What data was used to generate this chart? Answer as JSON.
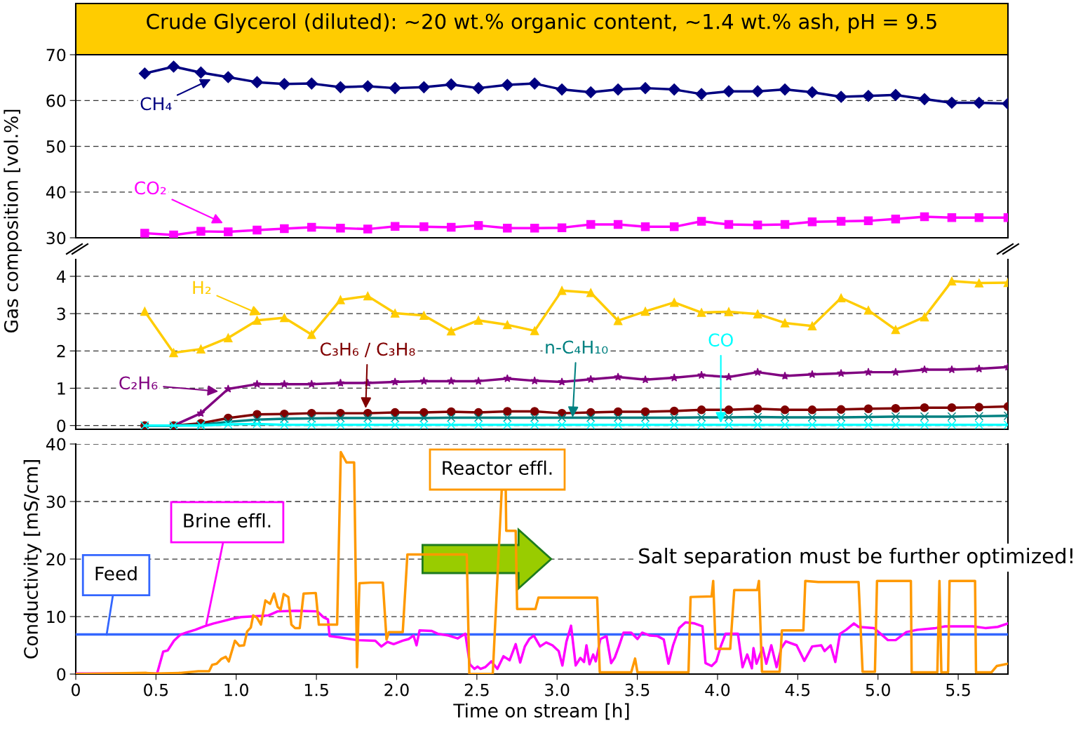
{
  "chart_data": [
    {
      "type": "line",
      "title": "Crude Glycerol (diluted): ~20 wt.% organic content, ~1.4 wt.% ash, pH = 9.5",
      "ylabel": "Gas composition [vol.%]",
      "x": [
        0.43,
        0.61,
        0.78,
        0.95,
        1.13,
        1.3,
        1.47,
        1.65,
        1.82,
        1.99,
        2.17,
        2.34,
        2.51,
        2.69,
        2.86,
        3.03,
        3.21,
        3.38,
        3.55,
        3.73,
        3.9,
        4.07,
        4.25,
        4.42,
        4.59,
        4.77,
        4.94,
        5.11,
        5.29,
        5.46,
        5.63,
        5.81
      ],
      "xlim": [
        0,
        5.81
      ],
      "ylim": [
        30,
        70
      ],
      "yticks": [
        30,
        40,
        50,
        60,
        70
      ],
      "grid": "y",
      "tick_labels": "y",
      "series": [
        {
          "name": "CH₄",
          "color": "#000080",
          "marker": "diamond",
          "values": [
            65.9,
            67.4,
            66.1,
            65.1,
            64.0,
            63.6,
            63.7,
            62.9,
            63.1,
            62.7,
            62.9,
            63.5,
            62.7,
            63.4,
            63.7,
            62.4,
            61.8,
            62.4,
            62.7,
            62.4,
            61.4,
            62.0,
            62.0,
            62.4,
            61.8,
            60.8,
            61.0,
            61.2,
            60.3,
            59.5,
            59.5,
            59.3
          ]
        },
        {
          "name": "CO₂",
          "color": "#ff00ff",
          "marker": "square",
          "values": [
            31.0,
            30.6,
            31.4,
            31.3,
            31.7,
            32.0,
            32.3,
            32.1,
            31.9,
            32.5,
            32.4,
            32.3,
            32.7,
            32.1,
            32.1,
            32.2,
            32.9,
            32.9,
            32.4,
            32.4,
            33.6,
            32.9,
            32.8,
            32.9,
            33.5,
            33.6,
            33.7,
            34.1,
            34.6,
            34.4,
            34.4,
            34.4
          ]
        }
      ]
    },
    {
      "type": "line",
      "x": [
        0.43,
        0.61,
        0.78,
        0.95,
        1.13,
        1.3,
        1.47,
        1.65,
        1.82,
        1.99,
        2.17,
        2.34,
        2.51,
        2.69,
        2.86,
        3.03,
        3.21,
        3.38,
        3.55,
        3.73,
        3.9,
        4.07,
        4.25,
        4.42,
        4.59,
        4.77,
        4.94,
        5.11,
        5.29,
        5.46,
        5.63,
        5.81
      ],
      "xlim": [
        0,
        5.81
      ],
      "ylim": [
        -0.1,
        4.45
      ],
      "yticks": [
        0,
        1,
        2,
        3,
        4
      ],
      "grid": "y",
      "tick_labels": "y",
      "series": [
        {
          "name": "H₂",
          "color": "#ffcc00",
          "marker": "triangle",
          "values": [
            3.06,
            1.95,
            2.05,
            2.35,
            2.82,
            2.89,
            2.44,
            3.37,
            3.47,
            3.01,
            2.95,
            2.53,
            2.82,
            2.7,
            2.54,
            3.62,
            3.56,
            2.81,
            3.06,
            3.3,
            3.03,
            3.05,
            2.99,
            2.75,
            2.67,
            3.42,
            3.09,
            2.57,
            2.91,
            3.87,
            3.82,
            3.83
          ]
        },
        {
          "name": "C₂H₆",
          "color": "#800080",
          "marker": "star",
          "values": [
            0,
            0,
            0.33,
            0.98,
            1.11,
            1.11,
            1.11,
            1.14,
            1.14,
            1.17,
            1.19,
            1.19,
            1.19,
            1.26,
            1.2,
            1.17,
            1.24,
            1.3,
            1.23,
            1.28,
            1.35,
            1.3,
            1.43,
            1.33,
            1.37,
            1.4,
            1.43,
            1.43,
            1.5,
            1.5,
            1.52,
            1.57
          ]
        },
        {
          "name": "C₃H₆ / C₃H₈",
          "color": "#800000",
          "marker": "circle",
          "values": [
            0,
            0,
            0.06,
            0.2,
            0.3,
            0.31,
            0.33,
            0.33,
            0.33,
            0.35,
            0.35,
            0.37,
            0.35,
            0.38,
            0.38,
            0.33,
            0.35,
            0.37,
            0.37,
            0.39,
            0.42,
            0.42,
            0.45,
            0.42,
            0.42,
            0.43,
            0.45,
            0.46,
            0.48,
            0.48,
            0.49,
            0.51
          ]
        },
        {
          "name": "n-C₄H₁₀",
          "color": "#008080",
          "marker": "cross",
          "values": [
            0,
            0,
            0.02,
            0.1,
            0.16,
            0.18,
            0.19,
            0.2,
            0.2,
            0.2,
            0.2,
            0.21,
            0.21,
            0.21,
            0.21,
            0.21,
            0.21,
            0.21,
            0.21,
            0.21,
            0.22,
            0.22,
            0.23,
            0.22,
            0.22,
            0.22,
            0.23,
            0.24,
            0.24,
            0.24,
            0.25,
            0.26
          ]
        },
        {
          "name": "CO",
          "color": "#00ffff",
          "marker": "cross",
          "values": [
            0,
            0,
            0,
            0.03,
            0.04,
            0.02,
            0.02,
            0.02,
            0.02,
            0.02,
            0.02,
            0.02,
            0.02,
            0.02,
            0.02,
            0.02,
            0.02,
            0.02,
            0.02,
            0.02,
            0.02,
            0.02,
            0.02,
            0.02,
            0.02,
            0.02,
            0.02,
            0.02,
            0.02,
            0.02,
            0.02,
            0.02
          ]
        }
      ]
    },
    {
      "type": "line",
      "xlabel": "Time on stream [h]",
      "ylabel": "Conductivity [mS/cm]",
      "xlim": [
        0,
        5.81
      ],
      "xticks": [
        0,
        0.5,
        {
          "value": 1,
          "label": "1.0"
        },
        1.5,
        {
          "value": 2,
          "label": "2.0"
        },
        2.5,
        {
          "value": 3,
          "label": "3.0"
        },
        3.5,
        {
          "value": 4,
          "label": "4.0"
        },
        4.5,
        {
          "value": 5,
          "label": "5.0"
        },
        5.5
      ],
      "ylim": [
        0,
        40
      ],
      "yticks": [
        0,
        10,
        20,
        30,
        40
      ],
      "grid": "y",
      "marker": "none",
      "annotations": [
        "Salt separation must be further optimized!"
      ],
      "series": [
        {
          "name": "Feed",
          "color": "#3366ff",
          "x": [
            0,
            5.81
          ],
          "values": [
            6.9,
            6.9
          ]
        },
        {
          "name": "Brine effl.",
          "color": "#ff00ff",
          "x": [
            0,
            0.507,
            0.545,
            0.573,
            0.612,
            0.65,
            0.688,
            0.745,
            0.802,
            0.859,
            0.916,
            0.973,
            1.03,
            1.144,
            1.201,
            1.258,
            1.372,
            1.505,
            1.543,
            1.572,
            1.582,
            1.639,
            1.753,
            1.867,
            1.905,
            1.943,
            1.981,
            2.038,
            2.076,
            2.105,
            2.124,
            2.143,
            2.219,
            2.257,
            2.323,
            2.38,
            2.428,
            2.456,
            2.485,
            2.504,
            2.523,
            2.552,
            2.59,
            2.628,
            2.666,
            2.704,
            2.742,
            2.77,
            2.799,
            2.827,
            2.855,
            2.894,
            2.932,
            2.971,
            3.01,
            3.033,
            3.058,
            3.087,
            3.116,
            3.145,
            3.168,
            3.183,
            3.202,
            3.225,
            3.241,
            3.27,
            3.308,
            3.337,
            3.36,
            3.385,
            3.414,
            3.462,
            3.501,
            3.53,
            3.578,
            3.626,
            3.665,
            3.694,
            3.723,
            3.761,
            3.8,
            3.857,
            3.906,
            3.925,
            3.963,
            3.992,
            4.021,
            4.05,
            4.127,
            4.156,
            4.185,
            4.214,
            4.224,
            4.243,
            4.281,
            4.304,
            4.335,
            4.368,
            4.397,
            4.426,
            4.493,
            4.541,
            4.59,
            4.647,
            4.667,
            4.705,
            4.734,
            4.763,
            4.802,
            4.85,
            4.879,
            4.975,
            5.062,
            5.11,
            5.177,
            5.245,
            5.36,
            5.418,
            5.592,
            5.669,
            5.746,
            5.81
          ],
          "values": [
            0.1,
            0.1,
            3.9,
            4.1,
            5.8,
            6.8,
            7.2,
            7.7,
            8.3,
            8.8,
            9.2,
            9.6,
            9.9,
            10.1,
            10.2,
            10.9,
            11.0,
            10.9,
            9.9,
            9.5,
            6.6,
            6.4,
            5.9,
            5.8,
            4.8,
            5.6,
            5.2,
            5.8,
            6.1,
            6.7,
            5.0,
            7.6,
            7.5,
            7.0,
            6.7,
            6.2,
            7.0,
            1.7,
            0.9,
            1.3,
            0.9,
            1.2,
            2.2,
            0.9,
            3.1,
            2.4,
            5.2,
            2.0,
            4.8,
            6.1,
            6.7,
            4.8,
            5.5,
            5.0,
            4.0,
            1.5,
            5.6,
            8.4,
            1.5,
            2.8,
            2.1,
            5.0,
            1.7,
            3.4,
            2.2,
            6.1,
            6.6,
            1.9,
            2.9,
            4.8,
            7.2,
            7.2,
            6.1,
            7.2,
            6.7,
            6.6,
            6.0,
            1.8,
            5.0,
            8.0,
            9.0,
            8.8,
            8.3,
            1.9,
            1.4,
            2.2,
            4.9,
            7.0,
            7.0,
            1.2,
            3.4,
            1.0,
            4.5,
            1.8,
            4.6,
            1.8,
            5.0,
            1.2,
            4.5,
            5.7,
            5.0,
            2.3,
            4.8,
            5.0,
            4.0,
            5.0,
            2.1,
            7.0,
            7.7,
            8.8,
            8.2,
            8.0,
            5.9,
            5.9,
            7.3,
            7.7,
            8.0,
            8.3,
            8.3,
            8.0,
            8.2,
            8.8
          ]
        },
        {
          "name": "Reactor effl.",
          "color": "#ff9900",
          "x": [
            0,
            0.44,
            0.497,
            0.65,
            0.764,
            0.831,
            0.85,
            0.878,
            0.906,
            0.935,
            0.954,
            0.992,
            1.02,
            1.049,
            1.068,
            1.091,
            1.106,
            1.129,
            1.154,
            1.182,
            1.211,
            1.236,
            1.258,
            1.277,
            1.296,
            1.325,
            1.344,
            1.367,
            1.396,
            1.42,
            1.496,
            1.515,
            1.629,
            1.652,
            1.687,
            1.735,
            1.753,
            1.768,
            1.838,
            1.914,
            1.937,
            1.952,
            2.038,
            2.067,
            2.437,
            2.453,
            2.599,
            2.655,
            2.68,
            2.683,
            2.742,
            2.751,
            2.865,
            2.884,
            3.25,
            3.266,
            3.462,
            3.486,
            3.501,
            3.819,
            3.832,
            3.963,
            3.973,
            3.988,
            4.079,
            4.104,
            4.247,
            4.258,
            4.277,
            4.387,
            4.401,
            4.535,
            4.547,
            4.628,
            4.879,
            4.904,
            4.981,
            4.994,
            5.205,
            5.21,
            5.37,
            5.383,
            5.395,
            5.437,
            5.446,
            5.605,
            5.611,
            5.707,
            5.74,
            5.81
          ],
          "values": [
            0,
            0.2,
            0.1,
            0.2,
            0.5,
            0.5,
            1.6,
            1.8,
            2.6,
            3.0,
            2.2,
            5.8,
            4.9,
            5.0,
            7.4,
            8.1,
            10.2,
            9.8,
            8.6,
            12.8,
            12.2,
            14.0,
            11.7,
            11.2,
            13.9,
            13.4,
            8.6,
            8.0,
            8.0,
            14.0,
            14.1,
            8.6,
            8.6,
            38.6,
            36.8,
            36.8,
            1.2,
            15.8,
            15.9,
            15.9,
            6.0,
            7.3,
            7.3,
            20.8,
            20.8,
            0.0,
            0.0,
            32.1,
            32.1,
            24.9,
            24.9,
            11.3,
            11.3,
            13.3,
            13.3,
            0.3,
            0.3,
            2.7,
            0.3,
            0.3,
            13.4,
            13.5,
            16.2,
            4.4,
            4.4,
            14.6,
            14.6,
            16.2,
            0.4,
            0.4,
            7.6,
            7.6,
            16.2,
            16.0,
            16.0,
            0.4,
            0.4,
            16.2,
            16.2,
            0.3,
            0.3,
            16.2,
            0.3,
            0.3,
            16.2,
            16.2,
            0.3,
            0.3,
            1.4,
            1.8
          ]
        }
      ]
    }
  ]
}
